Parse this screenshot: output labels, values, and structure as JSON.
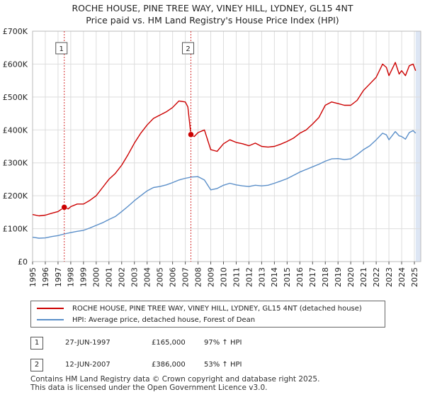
{
  "chart_data": {
    "type": "line",
    "title": "ROCHE HOUSE, PINE TREE WAY, VINEY HILL, LYDNEY, GL15 4NT",
    "subtitle": "Price paid vs. HM Land Registry's House Price Index (HPI)",
    "xlabel": "",
    "ylabel": "",
    "xlim": [
      1995,
      2025.5
    ],
    "ylim": [
      0,
      700000
    ],
    "x_ticks": [
      "1995",
      "1996",
      "1997",
      "1998",
      "1999",
      "2000",
      "2001",
      "2002",
      "2003",
      "2004",
      "2005",
      "2006",
      "2007",
      "2008",
      "2009",
      "2010",
      "2011",
      "2012",
      "2013",
      "2014",
      "2015",
      "2016",
      "2017",
      "2018",
      "2019",
      "2020",
      "2021",
      "2022",
      "2023",
      "2024",
      "2025"
    ],
    "y_ticks": [
      {
        "value": 0,
        "label": "£0"
      },
      {
        "value": 100000,
        "label": "£100K"
      },
      {
        "value": 200000,
        "label": "£200K"
      },
      {
        "value": 300000,
        "label": "£300K"
      },
      {
        "value": 400000,
        "label": "£400K"
      },
      {
        "value": 500000,
        "label": "£500K"
      },
      {
        "value": 600000,
        "label": "£600K"
      },
      {
        "value": 700000,
        "label": "£700K"
      }
    ],
    "grid": true,
    "series": [
      {
        "name": "ROCHE HOUSE, PINE TREE WAY, VINEY HILL, LYDNEY, GL15 4NT (detached house)",
        "color": "#cc0000",
        "points": [
          [
            1995,
            143000
          ],
          [
            1995.5,
            139000
          ],
          [
            1996,
            141000
          ],
          [
            1996.5,
            147000
          ],
          [
            1997,
            152000
          ],
          [
            1997.49,
            165000
          ],
          [
            1997.8,
            160000
          ],
          [
            1998,
            167000
          ],
          [
            1998.5,
            175000
          ],
          [
            1999,
            175000
          ],
          [
            1999.5,
            186000
          ],
          [
            2000,
            200000
          ],
          [
            2000.5,
            225000
          ],
          [
            2001,
            250000
          ],
          [
            2001.5,
            268000
          ],
          [
            2002,
            293000
          ],
          [
            2002.5,
            325000
          ],
          [
            2003,
            360000
          ],
          [
            2003.5,
            390000
          ],
          [
            2004,
            415000
          ],
          [
            2004.5,
            435000
          ],
          [
            2005,
            445000
          ],
          [
            2005.5,
            455000
          ],
          [
            2006,
            468000
          ],
          [
            2006.5,
            488000
          ],
          [
            2007,
            485000
          ],
          [
            2007.2,
            470000
          ],
          [
            2007.44,
            386000
          ],
          [
            2007.7,
            380000
          ],
          [
            2008,
            392000
          ],
          [
            2008.5,
            400000
          ],
          [
            2009,
            340000
          ],
          [
            2009.5,
            335000
          ],
          [
            2010,
            358000
          ],
          [
            2010.5,
            370000
          ],
          [
            2011,
            362000
          ],
          [
            2011.5,
            358000
          ],
          [
            2012,
            352000
          ],
          [
            2012.5,
            360000
          ],
          [
            2013,
            350000
          ],
          [
            2013.5,
            348000
          ],
          [
            2014,
            350000
          ],
          [
            2014.5,
            357000
          ],
          [
            2015,
            365000
          ],
          [
            2015.5,
            375000
          ],
          [
            2016,
            390000
          ],
          [
            2016.5,
            400000
          ],
          [
            2017,
            418000
          ],
          [
            2017.5,
            438000
          ],
          [
            2018,
            475000
          ],
          [
            2018.5,
            485000
          ],
          [
            2019,
            480000
          ],
          [
            2019.5,
            475000
          ],
          [
            2020,
            475000
          ],
          [
            2020.5,
            490000
          ],
          [
            2021,
            520000
          ],
          [
            2021.5,
            540000
          ],
          [
            2022,
            560000
          ],
          [
            2022.5,
            600000
          ],
          [
            2022.8,
            590000
          ],
          [
            2023,
            565000
          ],
          [
            2023.5,
            605000
          ],
          [
            2023.8,
            570000
          ],
          [
            2024,
            580000
          ],
          [
            2024.3,
            565000
          ],
          [
            2024.6,
            595000
          ],
          [
            2024.9,
            600000
          ],
          [
            2025.1,
            580000
          ]
        ]
      },
      {
        "name": "HPI: Average price, detached house, Forest of Dean",
        "color": "#5b8fc9",
        "points": [
          [
            1995,
            74000
          ],
          [
            1995.5,
            71000
          ],
          [
            1996,
            72000
          ],
          [
            1996.5,
            76000
          ],
          [
            1997,
            79000
          ],
          [
            1997.5,
            84000
          ],
          [
            1998,
            88000
          ],
          [
            1998.5,
            92000
          ],
          [
            1999,
            95000
          ],
          [
            1999.5,
            102000
          ],
          [
            2000,
            110000
          ],
          [
            2000.5,
            118000
          ],
          [
            2001,
            128000
          ],
          [
            2001.5,
            137000
          ],
          [
            2002,
            152000
          ],
          [
            2002.5,
            168000
          ],
          [
            2003,
            185000
          ],
          [
            2003.5,
            200000
          ],
          [
            2004,
            215000
          ],
          [
            2004.5,
            225000
          ],
          [
            2005,
            228000
          ],
          [
            2005.5,
            233000
          ],
          [
            2006,
            240000
          ],
          [
            2006.5,
            248000
          ],
          [
            2007,
            253000
          ],
          [
            2007.5,
            257000
          ],
          [
            2008,
            258000
          ],
          [
            2008.5,
            248000
          ],
          [
            2009,
            218000
          ],
          [
            2009.5,
            222000
          ],
          [
            2010,
            232000
          ],
          [
            2010.5,
            238000
          ],
          [
            2011,
            233000
          ],
          [
            2011.5,
            230000
          ],
          [
            2012,
            228000
          ],
          [
            2012.5,
            232000
          ],
          [
            2013,
            230000
          ],
          [
            2013.5,
            232000
          ],
          [
            2014,
            238000
          ],
          [
            2014.5,
            245000
          ],
          [
            2015,
            252000
          ],
          [
            2015.5,
            262000
          ],
          [
            2016,
            272000
          ],
          [
            2016.5,
            280000
          ],
          [
            2017,
            288000
          ],
          [
            2017.5,
            296000
          ],
          [
            2018,
            305000
          ],
          [
            2018.5,
            312000
          ],
          [
            2019,
            313000
          ],
          [
            2019.5,
            310000
          ],
          [
            2020,
            312000
          ],
          [
            2020.5,
            325000
          ],
          [
            2021,
            340000
          ],
          [
            2021.5,
            352000
          ],
          [
            2022,
            370000
          ],
          [
            2022.5,
            390000
          ],
          [
            2022.8,
            385000
          ],
          [
            2023,
            370000
          ],
          [
            2023.5,
            395000
          ],
          [
            2023.8,
            382000
          ],
          [
            2024,
            380000
          ],
          [
            2024.3,
            372000
          ],
          [
            2024.6,
            392000
          ],
          [
            2024.9,
            398000
          ],
          [
            2025.1,
            390000
          ]
        ]
      }
    ],
    "sales": [
      {
        "label": "1",
        "x": 1997.49,
        "value": 165000
      },
      {
        "label": "2",
        "x": 2007.44,
        "value": 386000
      }
    ]
  },
  "legend": {
    "series1": "ROCHE HOUSE, PINE TREE WAY, VINEY HILL, LYDNEY, GL15 4NT (detached house)",
    "series2": "HPI: Average price, detached house, Forest of Dean"
  },
  "sales_table": [
    {
      "num": "1",
      "date": "27-JUN-1997",
      "price": "£165,000",
      "hpi": "97% ↑ HPI"
    },
    {
      "num": "2",
      "date": "12-JUN-2007",
      "price": "£386,000",
      "hpi": "53% ↑ HPI"
    }
  ],
  "footer": {
    "line1": "Contains HM Land Registry data © Crown copyright and database right 2025.",
    "line2": "This data is licensed under the Open Government Licence v3.0."
  },
  "colors": {
    "red": "#cc0000",
    "blue": "#5b8fc9",
    "sale_band": "#dde6f4",
    "grid": "#dddddd"
  }
}
